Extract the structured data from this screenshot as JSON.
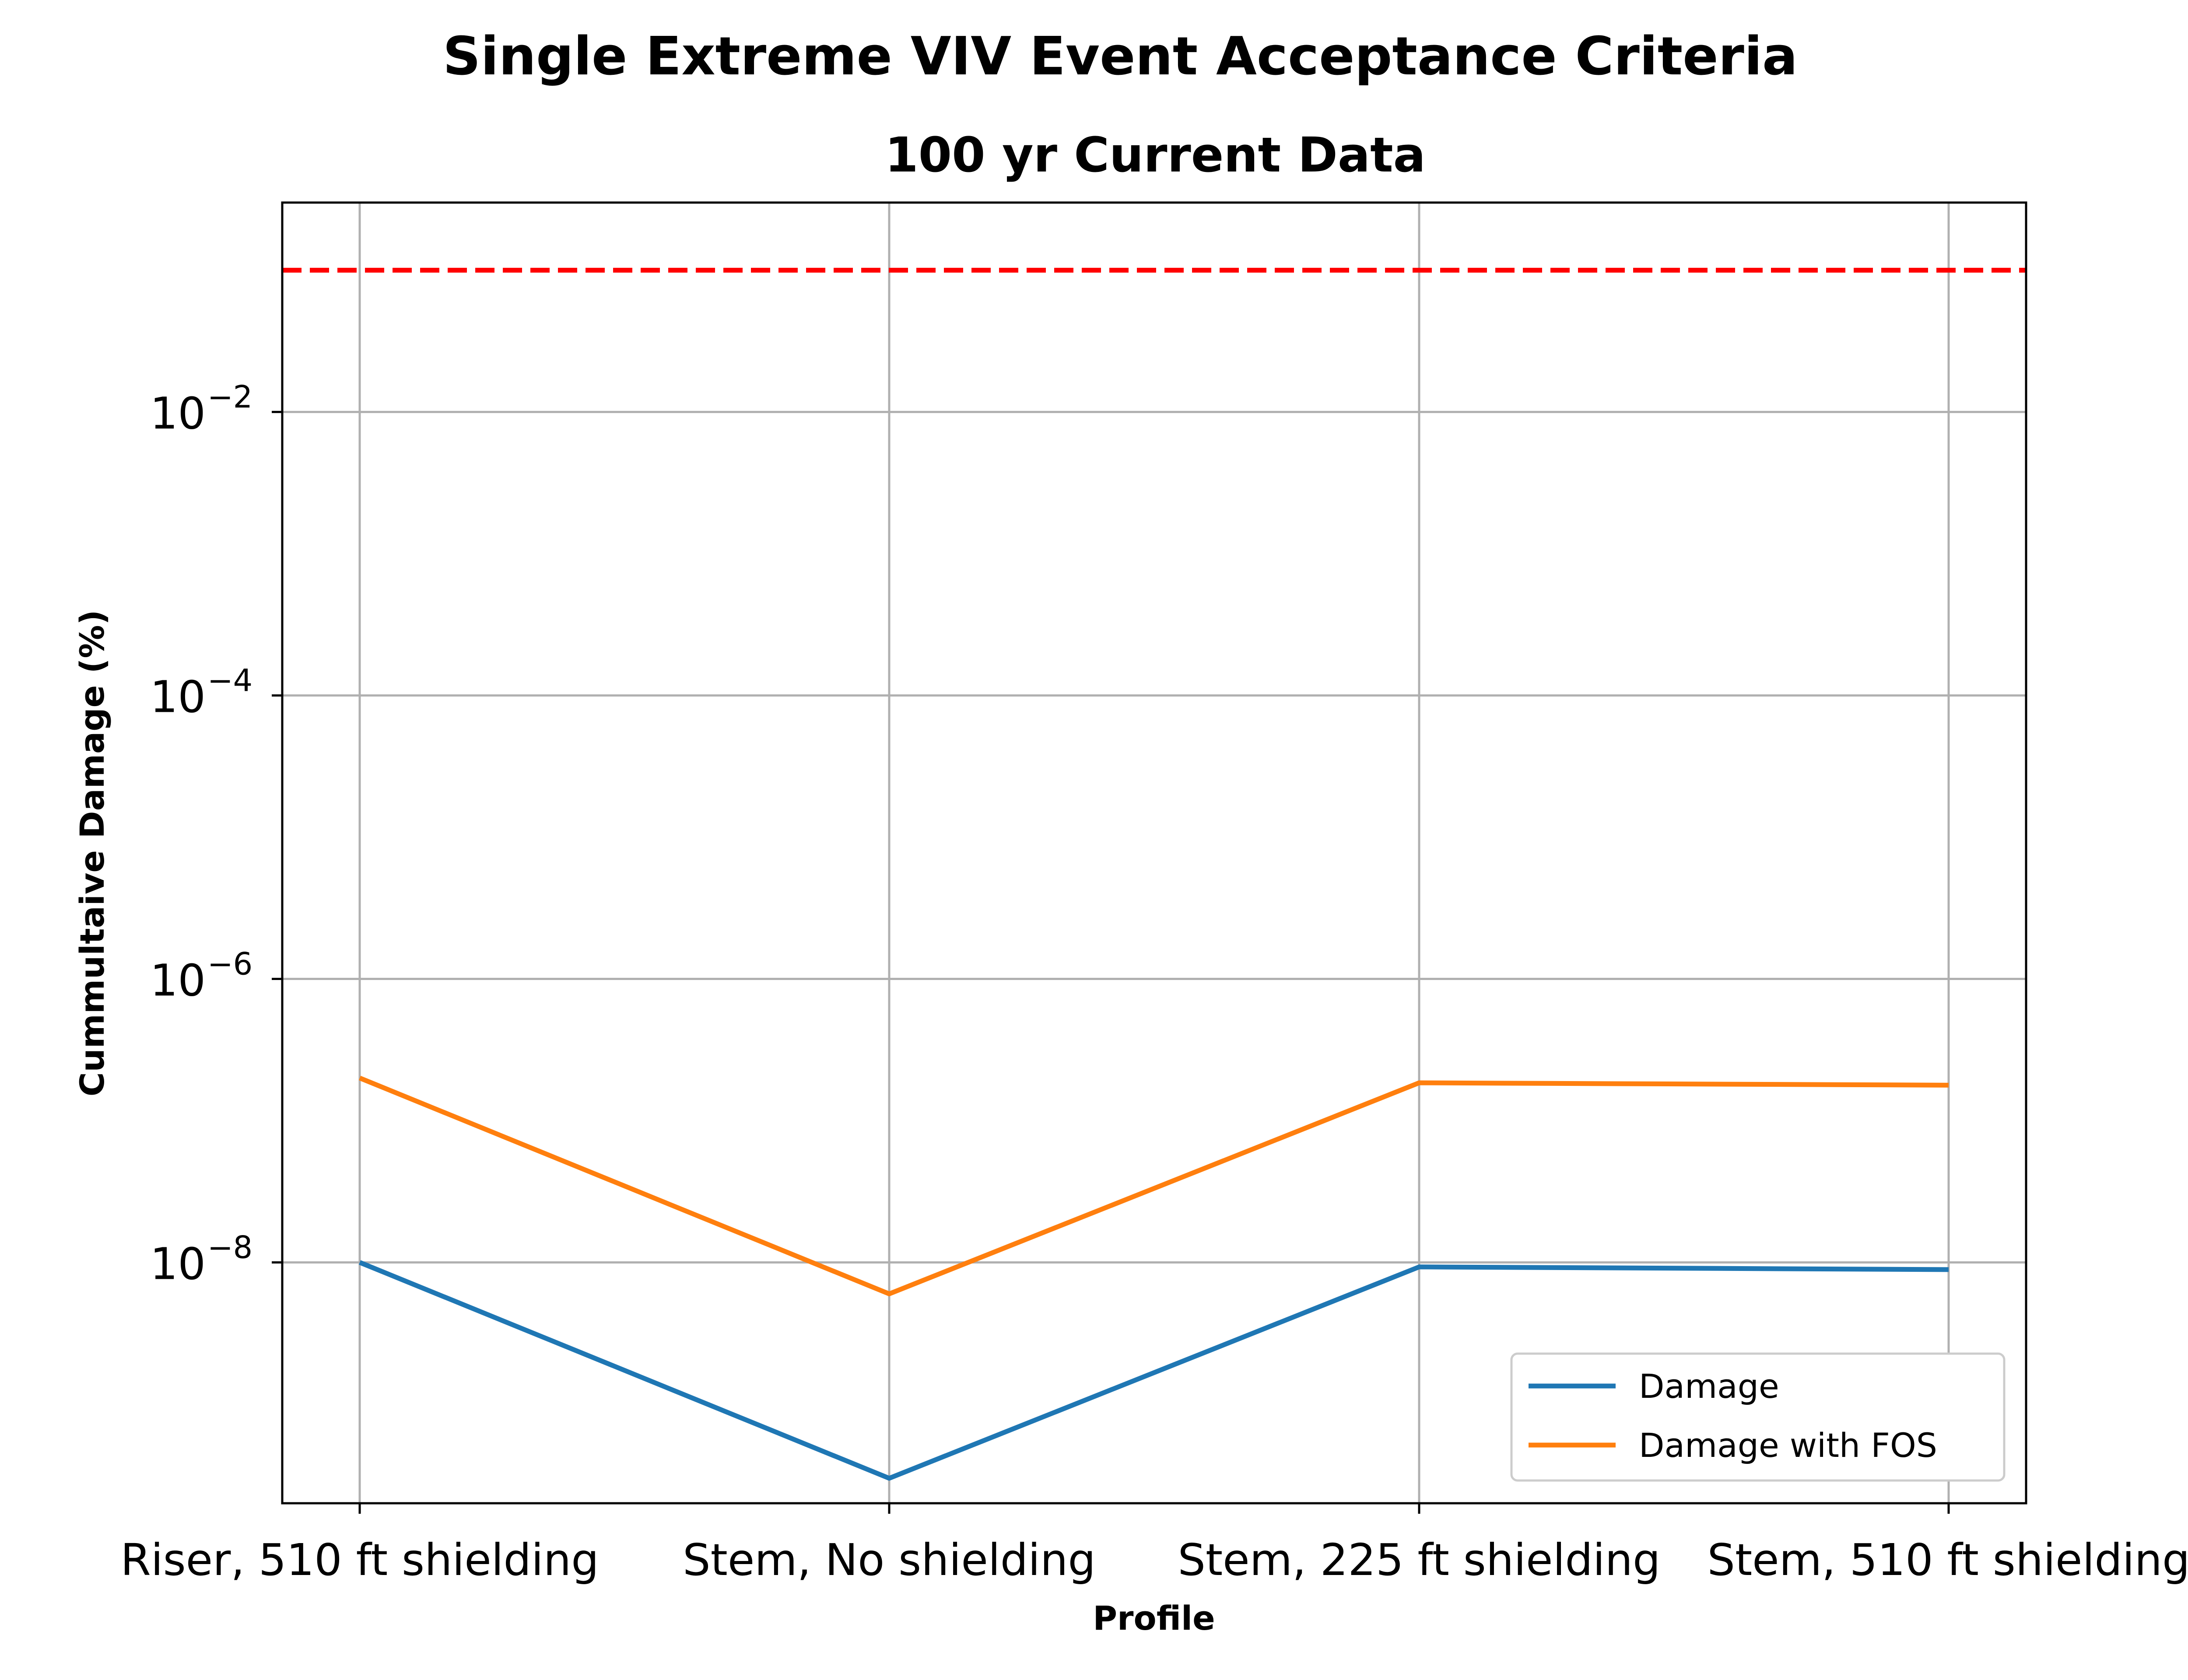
{
  "chart_data": {
    "type": "line",
    "title": "Single Extreme VIV Event Acceptance Criteria",
    "subtitle": "100 yr Current Data",
    "xlabel": "Profile",
    "ylabel": "Cummultaive Damage (%)",
    "yscale": "log",
    "ylim": [
      2e-10,
      0.3
    ],
    "categories": [
      "Riser, 510 ft shielding",
      "Stem, No shielding",
      "Stem, 225 ft shielding",
      "Stem, 510 ft shielding"
    ],
    "y_ticks": [
      {
        "value": 0.01,
        "base": "10",
        "exp": "−2"
      },
      {
        "value": 0.0001,
        "base": "10",
        "exp": "−4"
      },
      {
        "value": 1e-06,
        "base": "10",
        "exp": "−6"
      },
      {
        "value": 1e-08,
        "base": "10",
        "exp": "−8"
      }
    ],
    "series": [
      {
        "name": "Damage",
        "color": "#1f77b4",
        "values": [
          1e-08,
          3e-10,
          9.3e-09,
          8.9e-09
        ]
      },
      {
        "name": "Damage with FOS",
        "color": "#ff7f0e",
        "values": [
          2e-07,
          6e-09,
          1.85e-07,
          1.78e-07
        ]
      }
    ],
    "reference_line": {
      "value": 0.1,
      "color": "#ff0000",
      "style": "dashed"
    },
    "grid": true,
    "legend_position": "lower-right"
  }
}
